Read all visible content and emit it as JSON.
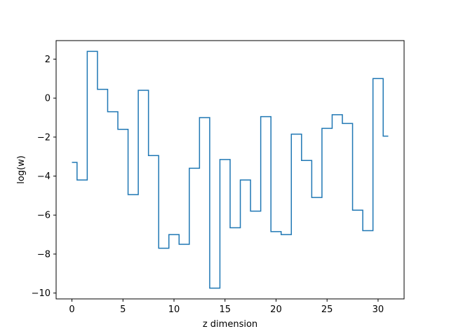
{
  "chart_data": {
    "type": "line",
    "drawstyle": "steps-mid",
    "xlabel": "z dimension",
    "ylabel": "log(w)",
    "xlim": [
      -1.55,
      32.55
    ],
    "ylim": [
      -10.3,
      2.95
    ],
    "xticks": [
      0,
      5,
      10,
      15,
      20,
      25,
      30
    ],
    "yticks": [
      -10,
      -8,
      -6,
      -4,
      -2,
      0,
      2
    ],
    "grid": false,
    "color": "#1f77b4",
    "series": [
      {
        "x": [
          0,
          1,
          2,
          3,
          4,
          5,
          6,
          7,
          8,
          9,
          10,
          11,
          12,
          13,
          14,
          15,
          16,
          17,
          18,
          19,
          20,
          21,
          22,
          23,
          24,
          25,
          26,
          27,
          28,
          29,
          30,
          31
        ],
        "values": [
          -3.3,
          -4.2,
          2.4,
          0.45,
          -0.7,
          -1.6,
          -4.95,
          0.4,
          -2.95,
          -7.7,
          -7.0,
          -7.5,
          -3.6,
          -1.0,
          -9.75,
          -3.15,
          -6.65,
          -4.2,
          -5.8,
          -0.95,
          -6.85,
          -7.0,
          -1.85,
          -3.2,
          -5.1,
          -1.55,
          -0.85,
          -1.3,
          -5.75,
          -6.8,
          1.0,
          -1.95
        ]
      }
    ]
  }
}
